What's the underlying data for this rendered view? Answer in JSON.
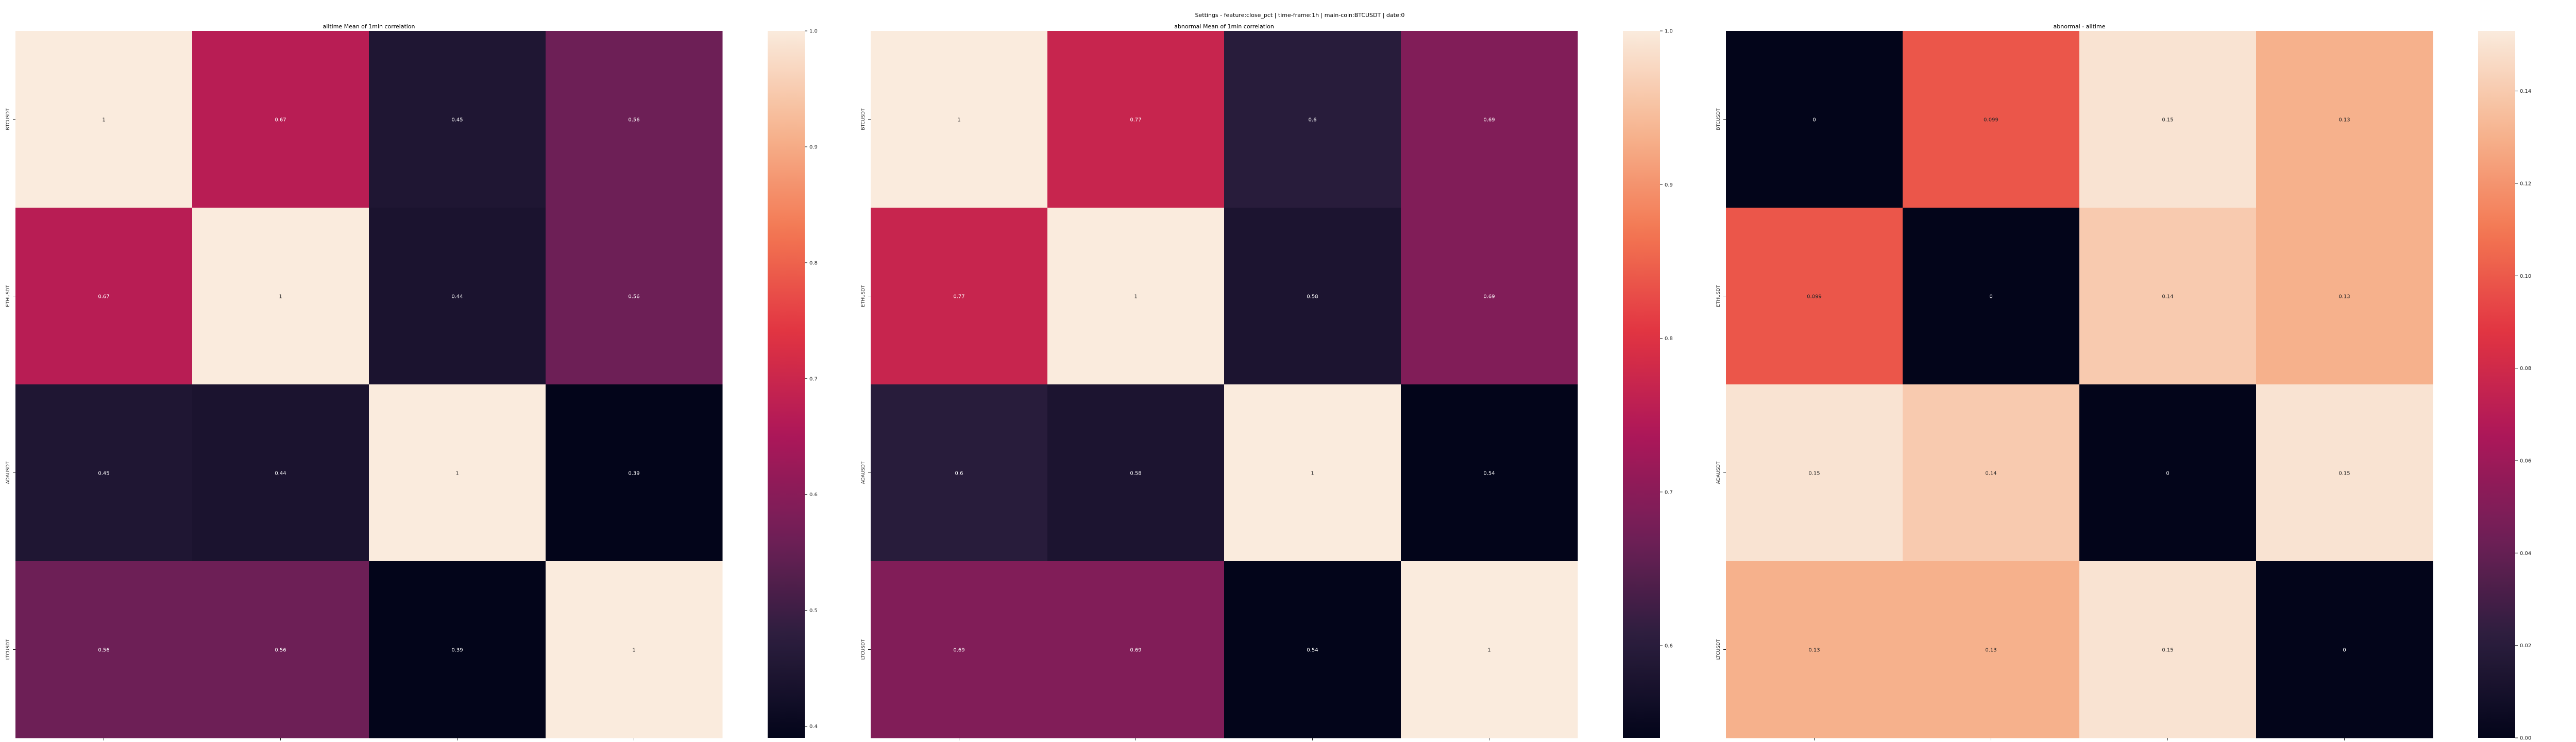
{
  "figure": {
    "suptitle": "Settings - feature:close_pct | time-frame:1h | main-coin:BTCUSDT | date:0"
  },
  "colors": {
    "colormap": [
      "#03051a",
      "#2c1e3e",
      "#701f57",
      "#ad1759",
      "#e13342",
      "#f37651",
      "#f6b48f",
      "#faebdd"
    ],
    "text_on_dark": "#ffffff",
    "text_on_light": "#262626"
  },
  "chart_data": [
    {
      "type": "heatmap",
      "title": "alltime Mean of 1min correlation",
      "x_labels": [
        "BTCUSDT",
        "ETHUSDT",
        "ADAUSDT",
        "LTCUSDT"
      ],
      "y_labels": [
        "BTCUSDT",
        "ETHUSDT",
        "ADAUSDT",
        "LTCUSDT"
      ],
      "values": [
        [
          1,
          0.67,
          0.45,
          0.56
        ],
        [
          0.67,
          1,
          0.44,
          0.56
        ],
        [
          0.45,
          0.44,
          1,
          0.39
        ],
        [
          0.56,
          0.56,
          0.39,
          1
        ]
      ],
      "cell_labels": [
        [
          "1",
          "0.67",
          "0.45",
          "0.56"
        ],
        [
          "0.67",
          "1",
          "0.44",
          "0.56"
        ],
        [
          "0.45",
          "0.44",
          "1",
          "0.39"
        ],
        [
          "0.56",
          "0.56",
          "0.39",
          "1"
        ]
      ],
      "colorbar": {
        "vmin": 0.39,
        "vmax": 1.0,
        "ticks": [
          0.4,
          0.5,
          0.6,
          0.7,
          0.8,
          0.9,
          1.0
        ],
        "tick_labels": [
          "0.4",
          "0.5",
          "0.6",
          "0.7",
          "0.8",
          "0.9",
          "1.0"
        ]
      }
    },
    {
      "type": "heatmap",
      "title": "abnormal Mean of 1min correlation",
      "x_labels": [
        "BTCUSDT",
        "ETHUSDT",
        "ADAUSDT",
        "LTCUSDT"
      ],
      "y_labels": [
        "BTCUSDT",
        "ETHUSDT",
        "ADAUSDT",
        "LTCUSDT"
      ],
      "values": [
        [
          1,
          0.77,
          0.6,
          0.69
        ],
        [
          0.77,
          1,
          0.58,
          0.69
        ],
        [
          0.6,
          0.58,
          1,
          0.54
        ],
        [
          0.69,
          0.69,
          0.54,
          1
        ]
      ],
      "cell_labels": [
        [
          "1",
          "0.77",
          "0.6",
          "0.69"
        ],
        [
          "0.77",
          "1",
          "0.58",
          "0.69"
        ],
        [
          "0.6",
          "0.58",
          "1",
          "0.54"
        ],
        [
          "0.69",
          "0.69",
          "0.54",
          "1"
        ]
      ],
      "colorbar": {
        "vmin": 0.54,
        "vmax": 1.0,
        "ticks": [
          0.6,
          0.7,
          0.8,
          0.9,
          1.0
        ],
        "tick_labels": [
          "0.6",
          "0.7",
          "0.8",
          "0.9",
          "1.0"
        ]
      }
    },
    {
      "type": "heatmap",
      "title": "abnormal - alltime",
      "x_labels": [
        "BTCUSDT",
        "ETHUSDT",
        "ADAUSDT",
        "LTCUSDT"
      ],
      "y_labels": [
        "BTCUSDT",
        "ETHUSDT",
        "ADAUSDT",
        "LTCUSDT"
      ],
      "values": [
        [
          0,
          0.099,
          0.15,
          0.13
        ],
        [
          0.099,
          0,
          0.14,
          0.13
        ],
        [
          0.15,
          0.14,
          0,
          0.15
        ],
        [
          0.13,
          0.13,
          0.15,
          0
        ]
      ],
      "cell_labels": [
        [
          "0",
          "0.099",
          "0.15",
          "0.13"
        ],
        [
          "0.099",
          "0",
          "0.14",
          "0.13"
        ],
        [
          "0.15",
          "0.14",
          "0",
          "0.15"
        ],
        [
          "0.13",
          "0.13",
          "0.15",
          "0"
        ]
      ],
      "colorbar": {
        "vmin": 0,
        "vmax": 0.153,
        "ticks": [
          0.0,
          0.02,
          0.04,
          0.06,
          0.08,
          0.1,
          0.12,
          0.14
        ],
        "tick_labels": [
          "0.00",
          "0.02",
          "0.04",
          "0.06",
          "0.08",
          "0.10",
          "0.12",
          "0.14"
        ]
      }
    }
  ]
}
